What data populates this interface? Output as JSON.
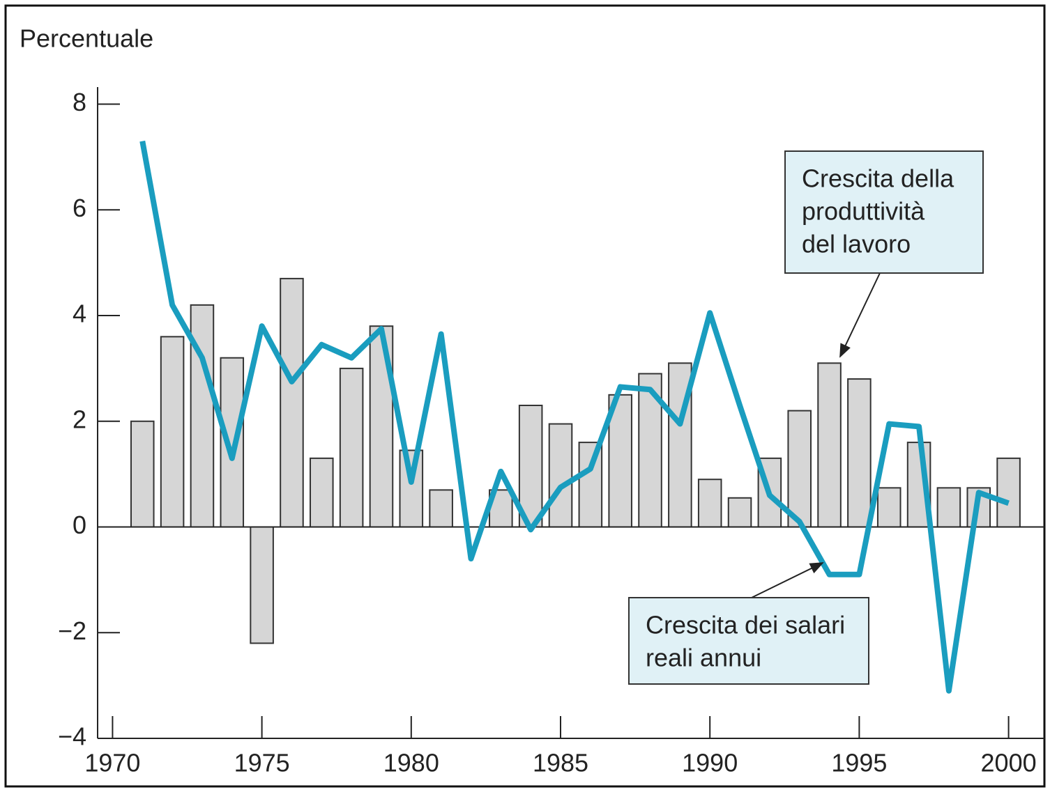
{
  "chart_data": {
    "type": "bar-line",
    "y_label": "Percentuale",
    "x": [
      1971,
      1972,
      1973,
      1974,
      1975,
      1976,
      1977,
      1978,
      1979,
      1980,
      1981,
      1982,
      1983,
      1984,
      1985,
      1986,
      1987,
      1988,
      1989,
      1990,
      1991,
      1992,
      1993,
      1994,
      1995,
      1996,
      1997,
      1998,
      1999,
      2000
    ],
    "series": [
      {
        "name": "Crescita della produttività del lavoro",
        "kind": "bar",
        "color": "#d6d6d6",
        "values": [
          2.0,
          3.6,
          4.2,
          3.2,
          -2.2,
          4.7,
          1.3,
          3.0,
          3.8,
          1.45,
          0.7,
          0,
          0.7,
          2.3,
          1.95,
          1.6,
          2.5,
          2.9,
          3.1,
          0.9,
          0.55,
          1.3,
          2.2,
          3.1,
          2.8,
          0.74,
          1.6,
          0.74,
          0.74,
          1.3
        ]
      },
      {
        "name": "Crescita dei salari reali annui",
        "kind": "line",
        "color": "#1a9dbf",
        "values": [
          7.3,
          4.2,
          3.2,
          1.3,
          3.8,
          2.75,
          3.45,
          3.2,
          3.75,
          0.85,
          3.65,
          -0.6,
          1.05,
          -0.05,
          0.75,
          1.1,
          2.65,
          2.6,
          1.95,
          4.05,
          2.3,
          0.6,
          0.1,
          -0.9,
          -0.9,
          1.95,
          1.9,
          -3.1,
          0.65,
          0.45
        ]
      }
    ],
    "annotations": [
      {
        "lines": [
          "Crescita della",
          "produttività",
          "del lavoro"
        ]
      },
      {
        "lines": [
          "Crescita dei salari",
          "reali annui"
        ]
      }
    ],
    "xlim": [
      1969.5,
      2001.2
    ],
    "xticks": [
      1970,
      1975,
      1980,
      1985,
      1990,
      1995,
      2000
    ],
    "ylim": [
      -4,
      8.6
    ],
    "yticks": [
      {
        "value": -4,
        "label": "−4"
      },
      {
        "value": -2,
        "label": "−2"
      },
      0,
      2,
      4,
      6,
      8
    ]
  }
}
